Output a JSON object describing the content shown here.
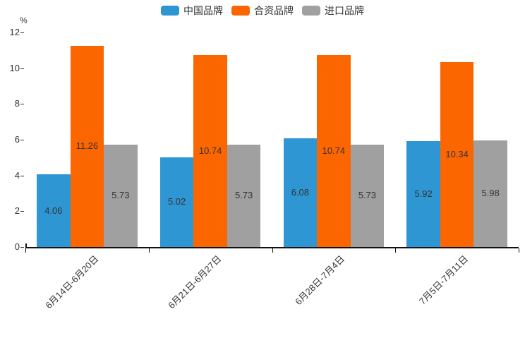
{
  "chart_data": {
    "type": "bar",
    "title": "",
    "ylabel": "%",
    "ylim": [
      0,
      12
    ],
    "yticks": [
      0,
      2,
      4,
      6,
      8,
      10,
      12
    ],
    "categories": [
      "6月14日-6月20日",
      "6月21日-6月27日",
      "6月28日-7月4日",
      "7月5日-7月11日"
    ],
    "series": [
      {
        "name": "中国品牌",
        "color": "#2E96D3",
        "values": [
          4.06,
          5.02,
          6.08,
          5.92
        ]
      },
      {
        "name": "合资品牌",
        "color": "#FC6600",
        "values": [
          11.26,
          10.74,
          10.74,
          10.34
        ]
      },
      {
        "name": "进口品牌",
        "color": "#A0A0A0",
        "values": [
          5.73,
          5.73,
          5.73,
          5.98
        ]
      }
    ],
    "legend_position": "top",
    "grid": false,
    "value_label_position": "inside",
    "axis_color": "#111111",
    "text_color": "#333333"
  }
}
